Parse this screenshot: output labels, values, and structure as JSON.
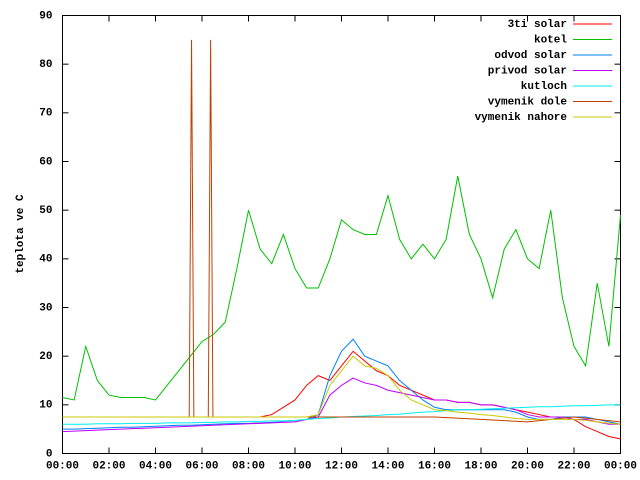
{
  "chart_data": {
    "type": "line",
    "ylabel": "teplota ve C",
    "xlim": [
      0,
      24
    ],
    "ylim": [
      0,
      90
    ],
    "yticks": [
      0,
      10,
      20,
      30,
      40,
      50,
      60,
      70,
      80,
      90
    ],
    "xticks": [
      {
        "value": 0,
        "label": "00:00"
      },
      {
        "value": 2,
        "label": "02:00"
      },
      {
        "value": 4,
        "label": "04:00"
      },
      {
        "value": 6,
        "label": "06:00"
      },
      {
        "value": 8,
        "label": "08:00"
      },
      {
        "value": 10,
        "label": "10:00"
      },
      {
        "value": 12,
        "label": "12:00"
      },
      {
        "value": 14,
        "label": "14:00"
      },
      {
        "value": 16,
        "label": "16:00"
      },
      {
        "value": 18,
        "label": "18:00"
      },
      {
        "value": 20,
        "label": "20:00"
      },
      {
        "value": 22,
        "label": "22:00"
      },
      {
        "value": 24,
        "label": "00:00"
      }
    ],
    "legend": "top-right",
    "x": [
      0,
      0.5,
      1,
      1.5,
      2,
      2.5,
      3,
      3.5,
      4,
      4.5,
      5,
      5.5,
      6,
      6.5,
      7,
      7.5,
      8,
      8.5,
      9,
      9.5,
      10,
      10.5,
      11,
      11.5,
      12,
      12.5,
      13,
      13.5,
      14,
      14.5,
      15,
      15.5,
      16,
      16.5,
      17,
      17.5,
      18,
      18.5,
      19,
      19.5,
      20,
      20.5,
      21,
      21.5,
      22,
      22.5,
      23,
      23.5,
      24
    ],
    "series": [
      {
        "name": "3ti solar",
        "color": "#ff0000",
        "values": [
          7.5,
          7.5,
          7.5,
          7.5,
          7.5,
          7.5,
          7.5,
          7.5,
          7.5,
          7.5,
          7.5,
          7.5,
          7.5,
          7.5,
          7.5,
          7.5,
          7.5,
          7.5,
          8,
          9.5,
          11,
          14,
          16,
          15,
          18,
          21,
          19,
          17,
          16,
          14,
          13,
          12,
          11,
          11,
          10.5,
          10.5,
          10,
          10,
          9.5,
          9,
          8.5,
          8,
          7.5,
          7.5,
          7,
          5.5,
          4.5,
          3.5,
          3
        ]
      },
      {
        "name": "kotel",
        "color": "#00c000",
        "values": [
          11.5,
          11,
          22,
          15,
          12,
          11.5,
          11.5,
          11.5,
          11,
          14,
          17,
          20,
          23,
          24.5,
          27,
          38,
          50,
          42,
          39,
          45,
          38,
          34,
          34,
          40,
          48,
          46,
          45,
          45,
          53,
          44,
          40,
          43,
          40,
          44,
          57,
          45,
          40,
          32,
          42,
          46,
          40,
          38,
          50,
          32,
          22,
          18,
          35,
          22,
          49
        ]
      },
      {
        "name": "odvod solar",
        "color": "#0080ff",
        "values": [
          5,
          5,
          5.1,
          5.2,
          5.3,
          5.4,
          5.4,
          5.5,
          5.6,
          5.7,
          5.8,
          5.8,
          5.9,
          6,
          6.1,
          6.2,
          6.2,
          6.3,
          6.4,
          6.5,
          6.5,
          7,
          8,
          16,
          21,
          23.5,
          20,
          19,
          18,
          15,
          13,
          11,
          9.5,
          9,
          9,
          9,
          9,
          9,
          9,
          8.5,
          7.5,
          7,
          7,
          7.5,
          7.5,
          7.5,
          7,
          6.5,
          6
        ]
      },
      {
        "name": "privod solar",
        "color": "#c000ff",
        "values": [
          4.5,
          4.6,
          4.7,
          4.8,
          4.9,
          5,
          5.1,
          5.2,
          5.3,
          5.4,
          5.5,
          5.6,
          5.7,
          5.8,
          5.9,
          6,
          6.1,
          6.2,
          6.3,
          6.4,
          6.5,
          7,
          7.5,
          12,
          14,
          15.5,
          14.5,
          14,
          13,
          12.5,
          12,
          11.5,
          11,
          11,
          10.5,
          10.5,
          10,
          10,
          9.5,
          9,
          8,
          7.5,
          7.5,
          7.5,
          7,
          7,
          6.5,
          6,
          6
        ]
      },
      {
        "name": "kutloch",
        "color": "#00eeee",
        "values": [
          6,
          6,
          6,
          6.1,
          6.1,
          6.1,
          6.2,
          6.2,
          6.2,
          6.3,
          6.3,
          6.3,
          6.4,
          6.4,
          6.5,
          6.5,
          6.6,
          6.6,
          6.7,
          6.7,
          6.8,
          7,
          7.2,
          7.3,
          7.5,
          7.6,
          7.7,
          7.8,
          8,
          8.1,
          8.3,
          8.5,
          8.6,
          8.8,
          9,
          9,
          9.1,
          9.2,
          9.3,
          9.4,
          9.5,
          9.6,
          9.6,
          9.7,
          9.8,
          9.8,
          9.9,
          10,
          10
        ]
      },
      {
        "name": "vymenik dole",
        "color": "#c04000",
        "x": [
          0,
          2,
          4,
          5,
          5.45,
          5.55,
          5.65,
          6,
          6.27,
          6.37,
          6.47,
          8,
          10,
          12,
          14,
          16,
          18,
          20,
          22,
          24
        ],
        "values": [
          7.5,
          7.5,
          7.5,
          7.5,
          7.5,
          85,
          7.5,
          7.5,
          7.5,
          85,
          7.5,
          7.5,
          7.5,
          7.5,
          7.5,
          7.5,
          7,
          6.5,
          7.5,
          6.5
        ]
      },
      {
        "name": "vymenik nahore",
        "color": "#c8c800",
        "values": [
          7.5,
          7.5,
          7.5,
          7.5,
          7.5,
          7.5,
          7.5,
          7.5,
          7.5,
          7.5,
          7.5,
          7.5,
          7.5,
          7.5,
          7.5,
          7.5,
          7.5,
          7.5,
          7.5,
          7.5,
          7.5,
          7.5,
          8,
          14,
          17,
          20,
          18,
          17.5,
          16,
          13,
          11,
          10,
          9,
          8.8,
          8.5,
          8.3,
          8,
          7.8,
          7.5,
          7.2,
          7,
          7,
          7,
          7,
          7,
          6.8,
          6.5,
          6.2,
          6
        ]
      }
    ]
  }
}
